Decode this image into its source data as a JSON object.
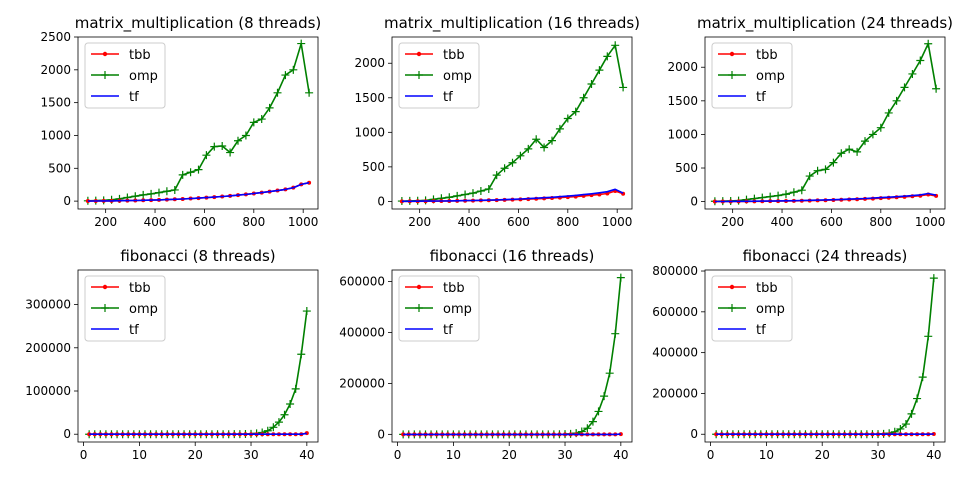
{
  "chart_data": [
    {
      "type": "line",
      "title": "matrix_multiplication (8 threads)",
      "xlim": [
        88,
        1060
      ],
      "ylim": [
        -120,
        2500
      ],
      "xticks": [
        200,
        400,
        600,
        800,
        1000
      ],
      "xtick_labels": [
        "200",
        "400",
        "600",
        "800",
        "1000"
      ],
      "yticks": [
        0,
        500,
        1000,
        1500,
        2000,
        2500
      ],
      "ytick_labels": [
        "0",
        "500",
        "1000",
        "1500",
        "2000",
        "2500"
      ],
      "x": [
        128,
        160,
        192,
        224,
        256,
        288,
        320,
        352,
        384,
        416,
        448,
        480,
        512,
        544,
        576,
        608,
        640,
        672,
        704,
        736,
        768,
        800,
        832,
        864,
        896,
        928,
        960,
        992,
        1024
      ],
      "series": [
        {
          "name": "tbb",
          "color": "#ff0000",
          "marker": "dot",
          "values": [
            1,
            2,
            3,
            4,
            6,
            8,
            10,
            13,
            16,
            19,
            23,
            28,
            33,
            39,
            46,
            53,
            61,
            70,
            80,
            91,
            103,
            116,
            130,
            145,
            161,
            178,
            205,
            255,
            280
          ]
        },
        {
          "name": "omp",
          "color": "#008000",
          "marker": "plus",
          "values": [
            5,
            8,
            12,
            20,
            35,
            55,
            75,
            95,
            110,
            130,
            150,
            170,
            400,
            440,
            480,
            700,
            830,
            840,
            740,
            920,
            1000,
            1200,
            1250,
            1420,
            1650,
            1920,
            2000,
            2400,
            1650
          ]
        },
        {
          "name": "tf",
          "color": "#0000ff",
          "marker": "none",
          "values": [
            1,
            2,
            3,
            4,
            6,
            8,
            10,
            13,
            16,
            19,
            23,
            28,
            33,
            39,
            46,
            53,
            61,
            70,
            80,
            91,
            103,
            116,
            130,
            145,
            161,
            178,
            205,
            255,
            280
          ]
        }
      ],
      "legend": "top-left"
    },
    {
      "type": "line",
      "title": "matrix_multiplication (16 threads)",
      "xlim": [
        88,
        1060
      ],
      "ylim": [
        -110,
        2380
      ],
      "xticks": [
        200,
        400,
        600,
        800,
        1000
      ],
      "xtick_labels": [
        "200",
        "400",
        "600",
        "800",
        "1000"
      ],
      "yticks": [
        0,
        500,
        1000,
        1500,
        2000
      ],
      "ytick_labels": [
        "0",
        "500",
        "1000",
        "1500",
        "2000"
      ],
      "x": [
        128,
        160,
        192,
        224,
        256,
        288,
        320,
        352,
        384,
        416,
        448,
        480,
        512,
        544,
        576,
        608,
        640,
        672,
        704,
        736,
        768,
        800,
        832,
        864,
        896,
        928,
        960,
        992,
        1024
      ],
      "series": [
        {
          "name": "tbb",
          "color": "#ff0000",
          "marker": "dot",
          "values": [
            1,
            2,
            2,
            3,
            4,
            5,
            6,
            8,
            10,
            12,
            14,
            16,
            19,
            22,
            25,
            29,
            33,
            38,
            43,
            49,
            55,
            62,
            70,
            80,
            90,
            100,
            115,
            150,
            110
          ]
        },
        {
          "name": "omp",
          "color": "#008000",
          "marker": "plus",
          "values": [
            5,
            7,
            10,
            15,
            30,
            45,
            60,
            80,
            100,
            120,
            150,
            180,
            380,
            480,
            560,
            660,
            760,
            900,
            780,
            880,
            1050,
            1200,
            1300,
            1500,
            1700,
            1900,
            2100,
            2260,
            1650
          ]
        },
        {
          "name": "tf",
          "color": "#0000ff",
          "marker": "none",
          "values": [
            1,
            2,
            3,
            4,
            5,
            6,
            7,
            9,
            11,
            13,
            16,
            19,
            22,
            26,
            30,
            35,
            40,
            46,
            53,
            60,
            68,
            77,
            87,
            98,
            110,
            125,
            140,
            175,
            120
          ]
        }
      ],
      "legend": "top-left"
    },
    {
      "type": "line",
      "title": "matrix_multiplication (24 threads)",
      "xlim": [
        88,
        1060
      ],
      "ylim": [
        -110,
        2450
      ],
      "xticks": [
        200,
        400,
        600,
        800,
        1000
      ],
      "xtick_labels": [
        "200",
        "400",
        "600",
        "800",
        "1000"
      ],
      "yticks": [
        0,
        500,
        1000,
        1500,
        2000
      ],
      "ytick_labels": [
        "0",
        "500",
        "1000",
        "1500",
        "2000"
      ],
      "x": [
        128,
        160,
        192,
        224,
        256,
        288,
        320,
        352,
        384,
        416,
        448,
        480,
        512,
        544,
        576,
        608,
        640,
        672,
        704,
        736,
        768,
        800,
        832,
        864,
        896,
        928,
        960,
        992,
        1024
      ],
      "series": [
        {
          "name": "tbb",
          "color": "#ff0000",
          "marker": "dot",
          "values": [
            1,
            1,
            2,
            3,
            3,
            4,
            5,
            7,
            8,
            10,
            11,
            13,
            15,
            18,
            21,
            24,
            27,
            31,
            35,
            40,
            45,
            51,
            57,
            64,
            71,
            79,
            88,
            105,
            85
          ]
        },
        {
          "name": "omp",
          "color": "#008000",
          "marker": "plus",
          "values": [
            5,
            7,
            10,
            15,
            30,
            45,
            60,
            75,
            90,
            110,
            140,
            170,
            380,
            460,
            480,
            580,
            720,
            780,
            740,
            900,
            1000,
            1100,
            1320,
            1500,
            1700,
            1900,
            2100,
            2350,
            1680
          ]
        },
        {
          "name": "tf",
          "color": "#0000ff",
          "marker": "none",
          "values": [
            1,
            2,
            3,
            4,
            5,
            6,
            7,
            8,
            10,
            12,
            14,
            16,
            19,
            22,
            25,
            29,
            33,
            37,
            42,
            47,
            53,
            59,
            66,
            73,
            81,
            90,
            100,
            120,
            95
          ]
        }
      ],
      "legend": "top-left"
    },
    {
      "type": "line",
      "title": "fibonacci (8 threads)",
      "xlim": [
        -1,
        42
      ],
      "ylim": [
        -18000,
        380000
      ],
      "xticks": [
        0,
        10,
        20,
        30,
        40
      ],
      "xtick_labels": [
        "0",
        "10",
        "20",
        "30",
        "40"
      ],
      "yticks": [
        0,
        100000,
        200000,
        300000
      ],
      "ytick_labels": [
        "0",
        "100000",
        "200000",
        "300000"
      ],
      "x": [
        1,
        2,
        3,
        4,
        5,
        6,
        7,
        8,
        9,
        10,
        11,
        12,
        13,
        14,
        15,
        16,
        17,
        18,
        19,
        20,
        21,
        22,
        23,
        24,
        25,
        26,
        27,
        28,
        29,
        30,
        31,
        32,
        33,
        34,
        35,
        36,
        37,
        38,
        39,
        40
      ],
      "series": [
        {
          "name": "tbb",
          "color": "#ff0000",
          "marker": "dot",
          "values": [
            0,
            0,
            0,
            0,
            0,
            0,
            0,
            0,
            0,
            0,
            0,
            0,
            0,
            0,
            0,
            0,
            0,
            0,
            0,
            0,
            0,
            0,
            0,
            0,
            0,
            0,
            0,
            0,
            0,
            0,
            0,
            0,
            0,
            0,
            0,
            0,
            0,
            0,
            0,
            2500
          ]
        },
        {
          "name": "omp",
          "color": "#008000",
          "marker": "plus",
          "values": [
            0,
            0,
            0,
            0,
            0,
            0,
            0,
            0,
            0,
            0,
            0,
            0,
            0,
            0,
            0,
            0,
            0,
            0,
            0,
            0,
            0,
            0,
            0,
            0,
            0,
            0,
            100,
            200,
            400,
            900,
            2000,
            4000,
            8000,
            16000,
            28000,
            45000,
            70000,
            105000,
            185000,
            285000
          ]
        },
        {
          "name": "tf",
          "color": "#0000ff",
          "marker": "none",
          "values": [
            0,
            0,
            0,
            0,
            0,
            0,
            0,
            0,
            0,
            0,
            0,
            0,
            0,
            0,
            0,
            0,
            0,
            0,
            0,
            0,
            0,
            0,
            0,
            0,
            0,
            0,
            0,
            0,
            0,
            0,
            0,
            0,
            0,
            0,
            0,
            0,
            0,
            0,
            0,
            2000
          ]
        }
      ],
      "legend": "top-left"
    },
    {
      "type": "line",
      "title": "fibonacci (16 threads)",
      "xlim": [
        -1,
        42
      ],
      "ylim": [
        -30000,
        645000
      ],
      "xticks": [
        0,
        10,
        20,
        30,
        40
      ],
      "xtick_labels": [
        "0",
        "10",
        "20",
        "30",
        "40"
      ],
      "yticks": [
        0,
        200000,
        400000,
        600000
      ],
      "ytick_labels": [
        "0",
        "200000",
        "400000",
        "600000"
      ],
      "x": [
        1,
        2,
        3,
        4,
        5,
        6,
        7,
        8,
        9,
        10,
        11,
        12,
        13,
        14,
        15,
        16,
        17,
        18,
        19,
        20,
        21,
        22,
        23,
        24,
        25,
        26,
        27,
        28,
        29,
        30,
        31,
        32,
        33,
        34,
        35,
        36,
        37,
        38,
        39,
        40
      ],
      "series": [
        {
          "name": "tbb",
          "color": "#ff0000",
          "marker": "dot",
          "values": [
            0,
            0,
            0,
            0,
            0,
            0,
            0,
            0,
            0,
            0,
            0,
            0,
            0,
            0,
            0,
            0,
            0,
            0,
            0,
            0,
            0,
            0,
            0,
            0,
            0,
            0,
            0,
            0,
            0,
            0,
            0,
            0,
            0,
            0,
            0,
            0,
            0,
            0,
            0,
            1000
          ]
        },
        {
          "name": "omp",
          "color": "#008000",
          "marker": "plus",
          "values": [
            0,
            0,
            0,
            0,
            0,
            0,
            0,
            0,
            0,
            0,
            0,
            0,
            0,
            0,
            0,
            0,
            0,
            0,
            0,
            0,
            0,
            0,
            0,
            0,
            0,
            0,
            0,
            100,
            300,
            800,
            2000,
            5000,
            11000,
            24000,
            50000,
            90000,
            150000,
            240000,
            395000,
            615000
          ]
        },
        {
          "name": "tf",
          "color": "#0000ff",
          "marker": "none",
          "values": [
            0,
            0,
            0,
            0,
            0,
            0,
            0,
            0,
            0,
            0,
            0,
            0,
            0,
            0,
            0,
            0,
            0,
            0,
            0,
            0,
            0,
            0,
            0,
            0,
            0,
            0,
            0,
            0,
            0,
            0,
            0,
            0,
            0,
            0,
            0,
            0,
            0,
            0,
            0,
            1000
          ]
        }
      ],
      "legend": "top-left"
    },
    {
      "type": "line",
      "title": "fibonacci (24 threads)",
      "xlim": [
        -1,
        42
      ],
      "ylim": [
        -38000,
        805000
      ],
      "xticks": [
        0,
        10,
        20,
        30,
        40
      ],
      "xtick_labels": [
        "0",
        "10",
        "20",
        "30",
        "40"
      ],
      "yticks": [
        0,
        200000,
        400000,
        600000,
        800000
      ],
      "ytick_labels": [
        "0",
        "200000",
        "400000",
        "600000",
        "800000"
      ],
      "x": [
        1,
        2,
        3,
        4,
        5,
        6,
        7,
        8,
        9,
        10,
        11,
        12,
        13,
        14,
        15,
        16,
        17,
        18,
        19,
        20,
        21,
        22,
        23,
        24,
        25,
        26,
        27,
        28,
        29,
        30,
        31,
        32,
        33,
        34,
        35,
        36,
        37,
        38,
        39,
        40
      ],
      "series": [
        {
          "name": "tbb",
          "color": "#ff0000",
          "marker": "dot",
          "values": [
            0,
            0,
            0,
            0,
            0,
            0,
            0,
            0,
            0,
            0,
            0,
            0,
            0,
            0,
            0,
            0,
            0,
            0,
            0,
            0,
            0,
            0,
            0,
            0,
            0,
            0,
            0,
            0,
            0,
            0,
            0,
            0,
            0,
            0,
            0,
            0,
            0,
            0,
            0,
            1000
          ]
        },
        {
          "name": "omp",
          "color": "#008000",
          "marker": "plus",
          "values": [
            0,
            0,
            0,
            0,
            0,
            0,
            0,
            0,
            0,
            0,
            0,
            0,
            0,
            0,
            0,
            0,
            0,
            0,
            0,
            0,
            0,
            0,
            0,
            0,
            0,
            0,
            0,
            100,
            300,
            800,
            2000,
            5000,
            12000,
            26000,
            50000,
            100000,
            175000,
            280000,
            480000,
            765000
          ]
        },
        {
          "name": "tf",
          "color": "#0000ff",
          "marker": "none",
          "values": [
            0,
            0,
            0,
            0,
            0,
            0,
            0,
            0,
            0,
            0,
            0,
            0,
            0,
            0,
            0,
            0,
            0,
            0,
            0,
            0,
            0,
            0,
            0,
            0,
            0,
            0,
            0,
            0,
            0,
            0,
            0,
            0,
            0,
            0,
            0,
            0,
            0,
            0,
            0,
            1000
          ]
        }
      ],
      "legend": "top-left"
    }
  ]
}
